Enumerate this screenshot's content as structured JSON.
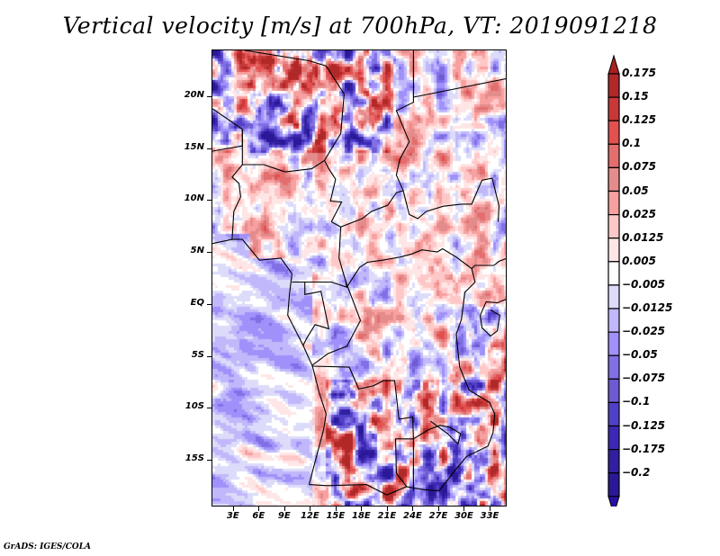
{
  "title": "Vertical velocity [m/s] at 700hPa, VT: 2019091218",
  "footer": "GrADS: IGES/COLA",
  "map": {
    "variable": "Vertical velocity",
    "units": "m/s",
    "level": "700hPa",
    "valid_time": "2019091218",
    "lon_range": [
      0.5,
      35
    ],
    "lat_range": [
      -19.5,
      24.5
    ],
    "lat_ticks": [
      {
        "value": 20,
        "label": "20N"
      },
      {
        "value": 15,
        "label": "15N"
      },
      {
        "value": 10,
        "label": "10N"
      },
      {
        "value": 5,
        "label": "5N"
      },
      {
        "value": 0,
        "label": "EQ"
      },
      {
        "value": -5,
        "label": "5S"
      },
      {
        "value": -10,
        "label": "10S"
      },
      {
        "value": -15,
        "label": "15S"
      }
    ],
    "lon_ticks": [
      {
        "value": 3,
        "label": "3E"
      },
      {
        "value": 6,
        "label": "6E"
      },
      {
        "value": 9,
        "label": "9E"
      },
      {
        "value": 12,
        "label": "12E"
      },
      {
        "value": 15,
        "label": "15E"
      },
      {
        "value": 18,
        "label": "18E"
      },
      {
        "value": 21,
        "label": "21E"
      },
      {
        "value": 24,
        "label": "24E"
      },
      {
        "value": 27,
        "label": "27E"
      },
      {
        "value": 30,
        "label": "30E"
      },
      {
        "value": 33,
        "label": "33E"
      }
    ]
  },
  "colorbar": {
    "levels": [
      {
        "label": "0.175",
        "color": "#b02828"
      },
      {
        "label": "0.15",
        "color": "#c83838"
      },
      {
        "label": "0.125",
        "color": "#e45050"
      },
      {
        "label": "0.1",
        "color": "#e46e6e"
      },
      {
        "label": "0.075",
        "color": "#e48c8c"
      },
      {
        "label": "0.05",
        "color": "#f8a0a0"
      },
      {
        "label": "0.025",
        "color": "#ffc8c8"
      },
      {
        "label": "0.0125",
        "color": "#ffe6e6"
      },
      {
        "label": "0.005",
        "color": "#ffffff"
      },
      {
        "label": "−0.005",
        "color": "#dcdcfa"
      },
      {
        "label": "−0.0125",
        "color": "#c0b8fa"
      },
      {
        "label": "−0.025",
        "color": "#a090fa"
      },
      {
        "label": "−0.05",
        "color": "#8070e6"
      },
      {
        "label": "−0.075",
        "color": "#6e5ad2"
      },
      {
        "label": "−0.1",
        "color": "#5040c8"
      },
      {
        "label": "−0.125",
        "color": "#3c28b4"
      },
      {
        "label": "−0.175",
        "color": "#3020a0"
      },
      {
        "label": "−0.2",
        "color": ""
      }
    ],
    "top_arrow_color": "#a82020",
    "bottom_arrow_color": "#2810a0",
    "bottom_box_color": "#2a1898"
  }
}
